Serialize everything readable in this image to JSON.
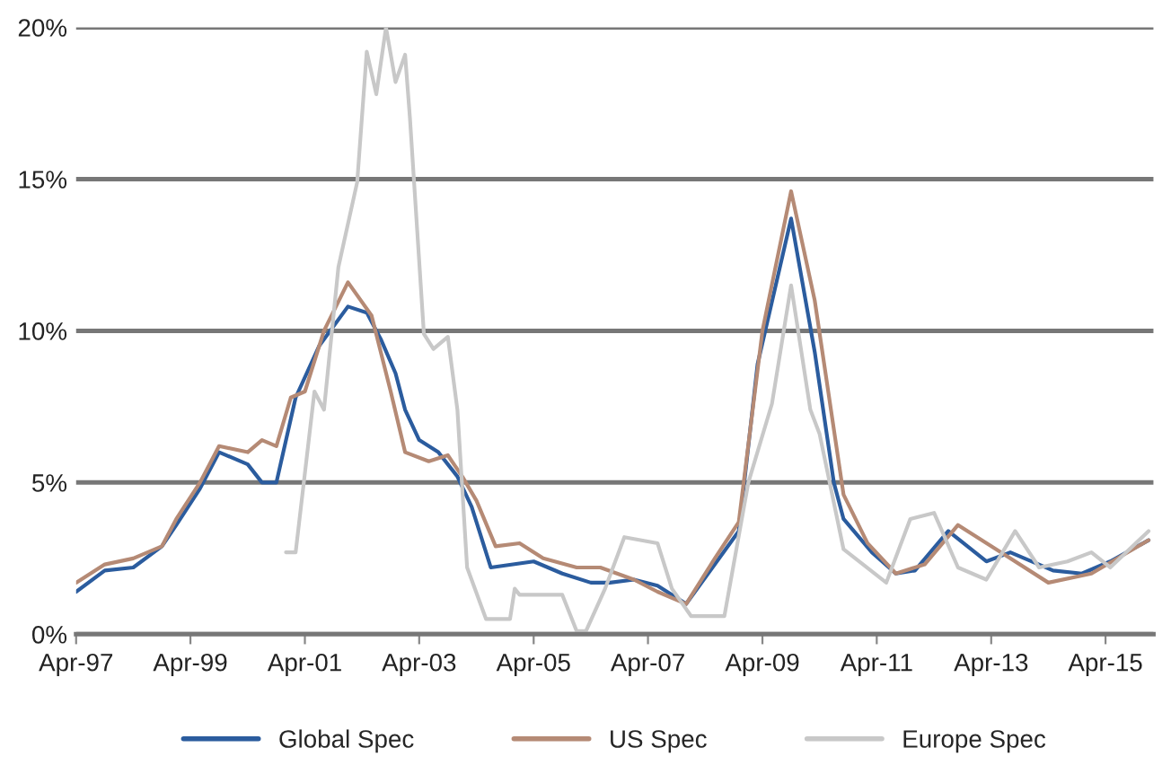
{
  "chart_data": {
    "type": "line",
    "xlim": [
      "1997-04",
      "2016-02"
    ],
    "ylim": [
      0,
      20
    ],
    "xticks": [
      {
        "value": "1997-04",
        "label": "Apr-97"
      },
      {
        "value": "1999-04",
        "label": "Apr-99"
      },
      {
        "value": "2001-04",
        "label": "Apr-01"
      },
      {
        "value": "2003-04",
        "label": "Apr-03"
      },
      {
        "value": "2005-04",
        "label": "Apr-05"
      },
      {
        "value": "2007-04",
        "label": "Apr-07"
      },
      {
        "value": "2009-04",
        "label": "Apr-09"
      },
      {
        "value": "2011-04",
        "label": "Apr-11"
      },
      {
        "value": "2013-04",
        "label": "Apr-13"
      },
      {
        "value": "2015-04",
        "label": "Apr-15"
      }
    ],
    "yticks": [
      {
        "value": 0,
        "label": "0%"
      },
      {
        "value": 5,
        "label": "5%"
      },
      {
        "value": 10,
        "label": "10%"
      },
      {
        "value": 15,
        "label": "15%"
      },
      {
        "value": 20,
        "label": "20%"
      }
    ],
    "grid": "y",
    "legend": "bottom",
    "marker": "none",
    "line_style": "solid",
    "series": [
      {
        "name": "Global Spec",
        "color": "#2b5c9e",
        "x": [
          "1997-04",
          "1997-10",
          "1998-04",
          "1998-10",
          "1999-01",
          "1999-06",
          "1999-10",
          "2000-04",
          "2000-07",
          "2000-10",
          "2001-02",
          "2001-07",
          "2002-01",
          "2002-05",
          "2002-08",
          "2002-11",
          "2003-01",
          "2003-04",
          "2003-08",
          "2003-12",
          "2004-03",
          "2004-07",
          "2005-04",
          "2005-10",
          "2006-04",
          "2006-08",
          "2007-01",
          "2007-06",
          "2007-12",
          "2008-11",
          "2009-03",
          "2009-10",
          "2010-03",
          "2010-07",
          "2010-09",
          "2011-03",
          "2011-08",
          "2011-12",
          "2012-07",
          "2013-03",
          "2013-08",
          "2014-05",
          "2014-11",
          "2015-05",
          "2016-01"
        ],
        "values": [
          1.4,
          2.1,
          2.2,
          2.9,
          3.6,
          4.8,
          6.0,
          5.6,
          5.0,
          5.0,
          7.8,
          9.5,
          10.8,
          10.6,
          9.7,
          8.6,
          7.4,
          6.4,
          6.0,
          5.2,
          4.2,
          2.2,
          2.4,
          2.0,
          1.7,
          1.7,
          1.8,
          1.6,
          1.0,
          3.4,
          8.9,
          13.7,
          9.3,
          5.0,
          3.8,
          2.7,
          2.0,
          2.1,
          3.4,
          2.4,
          2.7,
          2.1,
          2.0,
          2.4,
          3.1
        ]
      },
      {
        "name": "US Spec",
        "color": "#b58a75",
        "x": [
          "1997-04",
          "1997-10",
          "1998-04",
          "1998-10",
          "1999-01",
          "1999-06",
          "1999-10",
          "2000-04",
          "2000-07",
          "2000-10",
          "2001-01",
          "2001-04",
          "2001-08",
          "2002-01",
          "2002-06",
          "2002-10",
          "2003-01",
          "2003-06",
          "2003-10",
          "2004-01",
          "2004-04",
          "2004-08",
          "2005-01",
          "2005-06",
          "2006-01",
          "2006-06",
          "2007-01",
          "2007-06",
          "2007-12",
          "2008-06",
          "2008-11",
          "2009-04",
          "2009-10",
          "2010-03",
          "2010-09",
          "2011-02",
          "2011-08",
          "2012-02",
          "2012-09",
          "2013-06",
          "2014-04",
          "2015-01",
          "2016-01"
        ],
        "values": [
          1.7,
          2.3,
          2.5,
          2.9,
          3.8,
          5.0,
          6.2,
          6.0,
          6.4,
          6.2,
          7.8,
          8.0,
          10.0,
          11.6,
          10.5,
          8.0,
          6.0,
          5.7,
          5.9,
          5.2,
          4.4,
          2.9,
          3.0,
          2.5,
          2.2,
          2.2,
          1.8,
          1.4,
          1.0,
          2.5,
          3.7,
          10.0,
          14.6,
          11.0,
          4.6,
          3.0,
          2.0,
          2.3,
          3.6,
          2.7,
          1.7,
          2.0,
          3.1
        ]
      },
      {
        "name": "Europe Spec",
        "color": "#c8c8c8",
        "x": [
          "2000-12",
          "2001-02",
          "2001-06",
          "2001-08",
          "2001-11",
          "2002-03",
          "2002-05",
          "2002-07",
          "2002-09",
          "2002-11",
          "2003-01",
          "2003-02",
          "2003-05",
          "2003-07",
          "2003-10",
          "2003-12",
          "2004-02",
          "2004-06",
          "2004-11",
          "2004-12",
          "2005-01",
          "2005-10",
          "2006-01",
          "2006-03",
          "2006-07",
          "2006-11",
          "2007-06",
          "2007-09",
          "2008-01",
          "2008-08",
          "2009-01",
          "2009-06",
          "2009-10",
          "2010-02",
          "2010-04",
          "2010-09",
          "2011-06",
          "2011-11",
          "2012-04",
          "2012-09",
          "2013-03",
          "2013-09",
          "2014-02",
          "2014-08",
          "2015-01",
          "2015-05",
          "2016-01"
        ],
        "values": [
          2.7,
          2.7,
          8.0,
          7.4,
          12.1,
          14.9,
          19.2,
          17.8,
          20.0,
          18.2,
          19.1,
          17.0,
          9.9,
          9.4,
          9.8,
          7.4,
          2.2,
          0.5,
          0.5,
          1.5,
          1.3,
          1.3,
          0.1,
          0.1,
          1.5,
          3.2,
          3.0,
          1.5,
          0.6,
          0.6,
          5.0,
          7.6,
          11.5,
          7.4,
          6.6,
          2.8,
          1.7,
          3.8,
          4.0,
          2.2,
          1.8,
          3.4,
          2.2,
          2.4,
          2.7,
          2.2,
          3.4
        ]
      }
    ]
  }
}
